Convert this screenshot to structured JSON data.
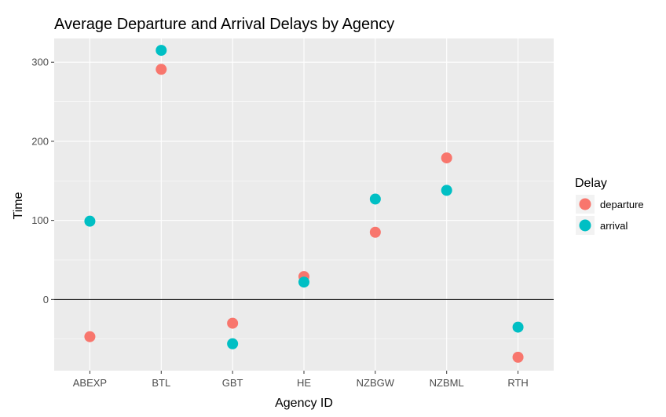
{
  "chart_data": {
    "type": "scatter",
    "title": "Average Departure and Arrival Delays by Agency",
    "xlabel": "Agency ID",
    "ylabel": "Time",
    "categories": [
      "ABEXP",
      "BTL",
      "GBT",
      "HE",
      "NZBGW",
      "NZBML",
      "RTH"
    ],
    "ylim": [
      -90,
      330
    ],
    "yticks": [
      0,
      100,
      200,
      300
    ],
    "reference_line": 0,
    "grid": true,
    "legend": {
      "title": "Delay",
      "placement": "right"
    },
    "series": [
      {
        "name": "departure",
        "color": "#F8766D",
        "values": [
          -47,
          291,
          -30,
          29,
          85,
          179,
          -73
        ]
      },
      {
        "name": "arrival",
        "color": "#00BFC4",
        "values": [
          99,
          315,
          -56,
          22,
          127,
          138,
          -35
        ]
      }
    ]
  }
}
